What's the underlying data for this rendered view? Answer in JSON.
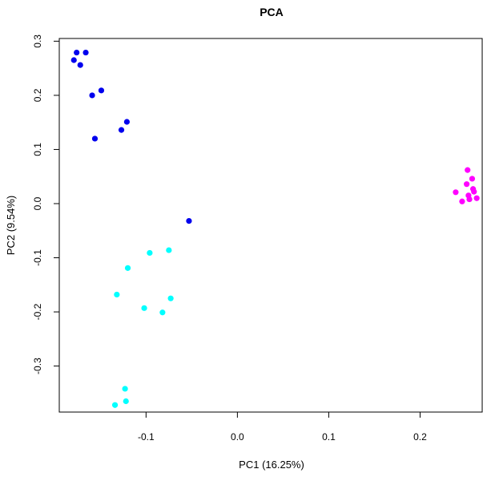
{
  "chart_data": {
    "type": "scatter",
    "title": "PCA",
    "xlabel": "PC1 (16.25%)",
    "ylabel": "PC2 (9.54%)",
    "xlim": [
      -0.195,
      0.268
    ],
    "ylim": [
      -0.385,
      0.305
    ],
    "grid": false,
    "x_ticks": [
      {
        "value": -0.1,
        "label": "-0.1"
      },
      {
        "value": 0.0,
        "label": "0.0"
      },
      {
        "value": 0.1,
        "label": "0.1"
      },
      {
        "value": 0.2,
        "label": "0.2"
      }
    ],
    "y_ticks": [
      {
        "value": -0.3,
        "label": "-0.3"
      },
      {
        "value": -0.2,
        "label": "-0.2"
      },
      {
        "value": -0.1,
        "label": "-0.1"
      },
      {
        "value": 0.0,
        "label": "0.0"
      },
      {
        "value": 0.1,
        "label": "0.1"
      },
      {
        "value": 0.2,
        "label": "0.2"
      },
      {
        "value": 0.3,
        "label": "0.3"
      }
    ],
    "series": [
      {
        "color": "#0000ee",
        "points": [
          {
            "x": -0.176,
            "y": 0.279
          },
          {
            "x": -0.166,
            "y": 0.279
          },
          {
            "x": -0.179,
            "y": 0.265
          },
          {
            "x": -0.172,
            "y": 0.256
          },
          {
            "x": -0.149,
            "y": 0.209
          },
          {
            "x": -0.159,
            "y": 0.2
          },
          {
            "x": -0.121,
            "y": 0.151
          },
          {
            "x": -0.127,
            "y": 0.136
          },
          {
            "x": -0.156,
            "y": 0.12
          },
          {
            "x": -0.053,
            "y": -0.032
          }
        ]
      },
      {
        "color": "#00ffff",
        "points": [
          {
            "x": -0.075,
            "y": -0.086
          },
          {
            "x": -0.096,
            "y": -0.091
          },
          {
            "x": -0.12,
            "y": -0.119
          },
          {
            "x": -0.132,
            "y": -0.168
          },
          {
            "x": -0.073,
            "y": -0.175
          },
          {
            "x": -0.102,
            "y": -0.193
          },
          {
            "x": -0.082,
            "y": -0.201
          },
          {
            "x": -0.123,
            "y": -0.342
          },
          {
            "x": -0.122,
            "y": -0.365
          },
          {
            "x": -0.134,
            "y": -0.372
          }
        ]
      },
      {
        "color": "#ff00ff",
        "points": [
          {
            "x": 0.252,
            "y": 0.062
          },
          {
            "x": 0.257,
            "y": 0.046
          },
          {
            "x": 0.251,
            "y": 0.036
          },
          {
            "x": 0.258,
            "y": 0.027
          },
          {
            "x": 0.259,
            "y": 0.022
          },
          {
            "x": 0.239,
            "y": 0.021
          },
          {
            "x": 0.253,
            "y": 0.015
          },
          {
            "x": 0.262,
            "y": 0.01
          },
          {
            "x": 0.254,
            "y": 0.008
          },
          {
            "x": 0.246,
            "y": 0.004
          }
        ]
      }
    ]
  }
}
